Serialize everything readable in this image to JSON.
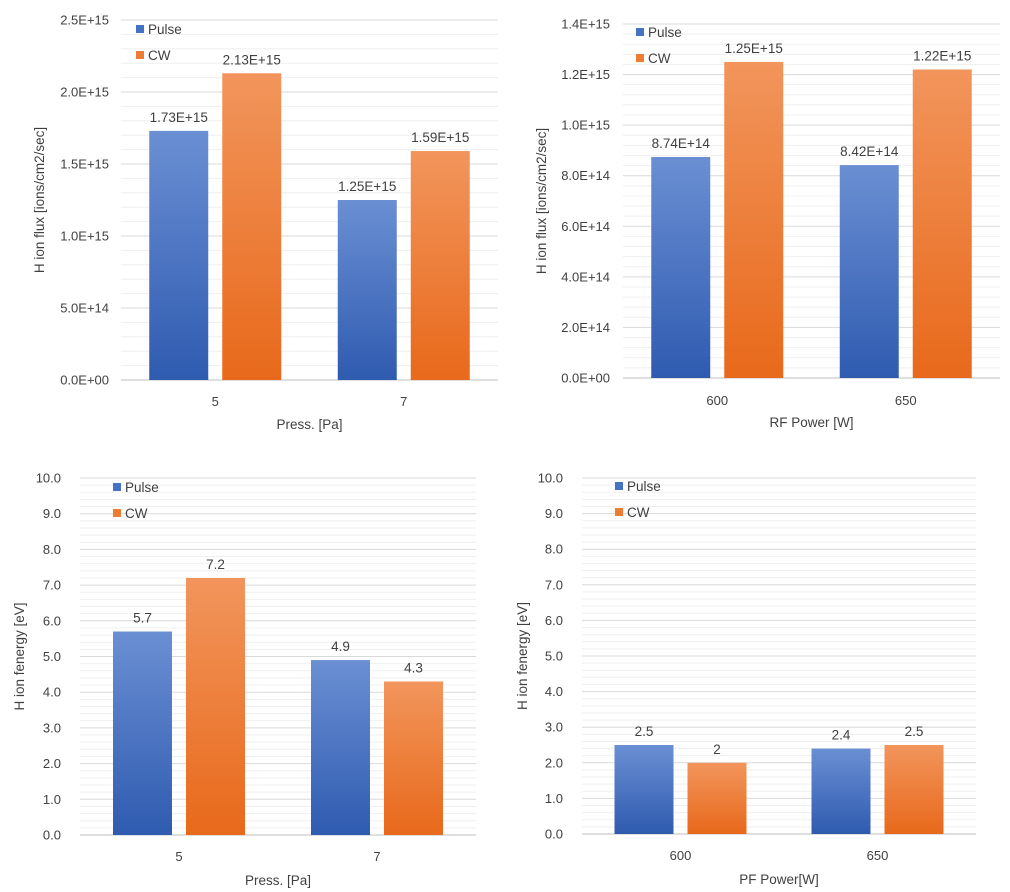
{
  "colors": {
    "pulse": "#4472c4",
    "cw": "#ed7d31"
  },
  "chart_data": [
    {
      "type": "bar",
      "categories": [
        "5",
        "7"
      ],
      "series": [
        {
          "name": "Pulse",
          "values": [
            1730000000000000.0,
            1250000000000000.0
          ],
          "labels": [
            "1.73E+15",
            "1.25E+15"
          ]
        },
        {
          "name": "CW",
          "values": [
            2130000000000000.0,
            1590000000000000.0
          ],
          "labels": [
            "2.13E+15",
            "1.59E+15"
          ]
        }
      ],
      "xlabel": "Press. [Pa]",
      "ylabel": "H ion flux [ions/cm2/sec]",
      "ylim": [
        0,
        2500000000000000.0
      ],
      "yticks": [
        0,
        500000000000000.0,
        1000000000000000.0,
        1500000000000000.0,
        2000000000000000.0,
        2500000000000000.0
      ],
      "ytick_labels": [
        "0.0E+00",
        "5.0E+14",
        "1.0E+15",
        "1.5E+15",
        "2.0E+15",
        "2.5E+15"
      ],
      "grid": true,
      "legend": "top-left"
    },
    {
      "type": "bar",
      "categories": [
        "600",
        "650"
      ],
      "series": [
        {
          "name": "Pulse",
          "values": [
            874000000000000.0,
            842000000000000.0
          ],
          "labels": [
            "8.74E+14",
            "8.42E+14"
          ]
        },
        {
          "name": "CW",
          "values": [
            1250000000000000.0,
            1220000000000000.0
          ],
          "labels": [
            "1.25E+15",
            "1.22E+15"
          ]
        }
      ],
      "xlabel": "RF Power [W]",
      "ylabel": "H ion flux [ions/cm2/sec]",
      "ylim": [
        0,
        1400000000000000.0
      ],
      "yticks": [
        0,
        200000000000000.0,
        400000000000000.0,
        600000000000000.0,
        800000000000000.0,
        1000000000000000.0,
        1200000000000000.0,
        1400000000000000.0
      ],
      "ytick_labels": [
        "0.0E+00",
        "2.0E+14",
        "4.0E+14",
        "6.0E+14",
        "8.0E+14",
        "1.0E+15",
        "1.2E+15",
        "1.4E+15"
      ],
      "grid": true,
      "legend": "top-left"
    },
    {
      "type": "bar",
      "categories": [
        "5",
        "7"
      ],
      "series": [
        {
          "name": "Pulse",
          "values": [
            5.7,
            4.9
          ],
          "labels": [
            "5.7",
            "4.9"
          ]
        },
        {
          "name": "CW",
          "values": [
            7.2,
            4.3
          ],
          "labels": [
            "7.2",
            "4.3"
          ]
        }
      ],
      "xlabel": "Press. [Pa]",
      "ylabel": "H ion fenergy [eV]",
      "ylim": [
        0,
        10
      ],
      "yticks": [
        0,
        1,
        2,
        3,
        4,
        5,
        6,
        7,
        8,
        9,
        10
      ],
      "ytick_labels": [
        "0.0",
        "1.0",
        "2.0",
        "3.0",
        "4.0",
        "5.0",
        "6.0",
        "7.0",
        "8.0",
        "9.0",
        "10.0"
      ],
      "grid": true,
      "legend": "top-left"
    },
    {
      "type": "bar",
      "categories": [
        "600",
        "650"
      ],
      "series": [
        {
          "name": "Pulse",
          "values": [
            2.5,
            2.4
          ],
          "labels": [
            "2.5",
            "2.4"
          ]
        },
        {
          "name": "CW",
          "values": [
            2.0,
            2.5
          ],
          "labels": [
            "2",
            "2.5"
          ]
        }
      ],
      "xlabel": "PF Power[W]",
      "ylabel": "H ion fenergy [eV]",
      "ylim": [
        0,
        10
      ],
      "yticks": [
        0,
        1,
        2,
        3,
        4,
        5,
        6,
        7,
        8,
        9,
        10
      ],
      "ytick_labels": [
        "0.0",
        "1.0",
        "2.0",
        "3.0",
        "4.0",
        "5.0",
        "6.0",
        "7.0",
        "8.0",
        "9.0",
        "10.0"
      ],
      "grid": true,
      "legend": "top-left"
    }
  ]
}
